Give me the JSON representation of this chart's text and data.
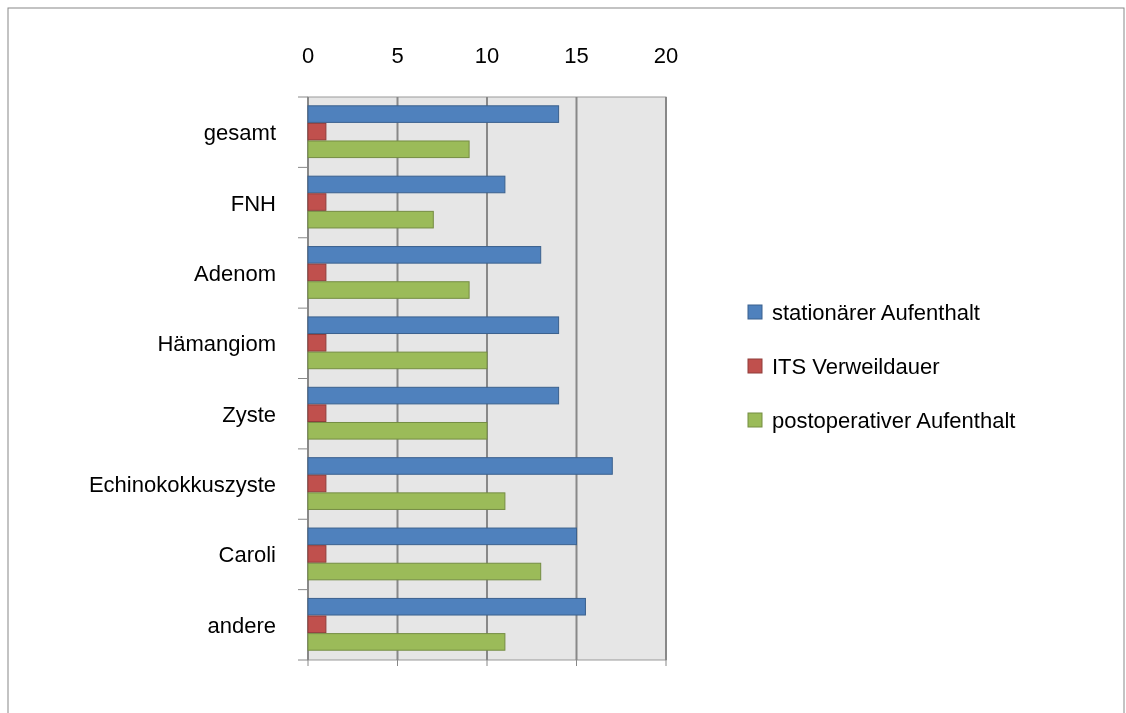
{
  "chart_data": {
    "type": "bar",
    "orientation": "horizontal",
    "categories": [
      "gesamt",
      "FNH",
      "Adenom",
      "Hämangiom",
      "Zyste",
      "Echinokokkuszyste",
      "Caroli",
      "andere"
    ],
    "series": [
      {
        "name": "stationärer Aufenthalt",
        "color": "#4f81bd",
        "values": [
          14,
          11,
          13,
          14,
          14,
          17,
          15,
          15.5
        ]
      },
      {
        "name": "ITS Verweildauer",
        "color": "#c0504d",
        "values": [
          1,
          1,
          1,
          1,
          1,
          1,
          1,
          1
        ]
      },
      {
        "name": "postoperativer Aufenthalt",
        "color": "#9bbb59",
        "values": [
          9,
          7,
          9,
          10,
          10,
          11,
          13,
          11
        ]
      }
    ],
    "xlim": [
      0,
      20
    ],
    "xticks": [
      0,
      5,
      10,
      15,
      20
    ],
    "grid": "x",
    "legend": "right"
  }
}
